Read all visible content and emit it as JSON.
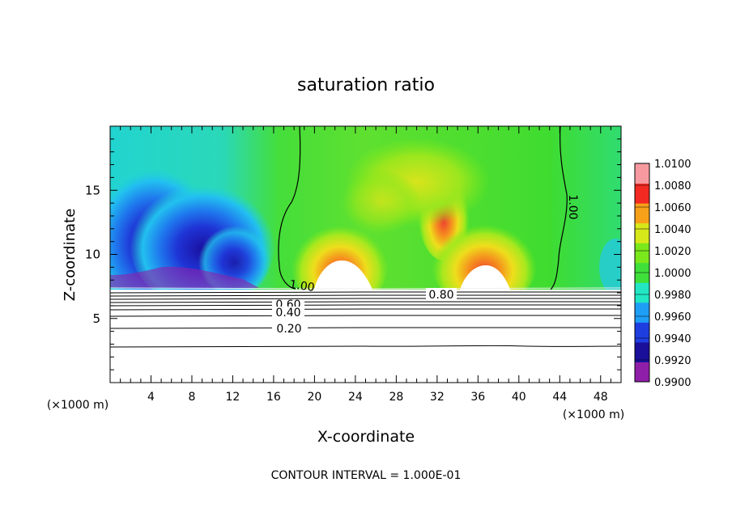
{
  "chart_data": {
    "type": "heatmap",
    "title": "saturation ratio",
    "xlabel": "X-coordinate",
    "ylabel": "Z-coordinate",
    "x_unit_label": "(×1000 m)",
    "x_unit_label_right": "(×1000 m)",
    "footer": "CONTOUR INTERVAL = 1.000E-01",
    "xlim": [
      0,
      50
    ],
    "ylim": [
      0,
      20
    ],
    "x_ticks": [
      4,
      8,
      12,
      16,
      20,
      24,
      28,
      32,
      36,
      40,
      44,
      48
    ],
    "y_ticks": [
      5,
      10,
      15
    ],
    "colorbar": {
      "min": 0.99,
      "max": 1.01,
      "levels": [
        0.99,
        0.992,
        0.994,
        0.996,
        0.998,
        1.0,
        1.002,
        1.004,
        1.006,
        1.008,
        1.01
      ],
      "labels": [
        "0.9900",
        "0.9920",
        "0.9940",
        "0.9960",
        "0.9980",
        "1.0000",
        "1.0020",
        "1.0040",
        "1.0060",
        "1.0080",
        "1.0100"
      ],
      "colors": [
        "#8f1fa8",
        "#1a0f9a",
        "#1f3ee0",
        "#1f9ef5",
        "#22e6c4",
        "#3fe03a",
        "#7be81c",
        "#d7e81a",
        "#f7a11a",
        "#f22a22",
        "#f79aa0"
      ]
    },
    "contour_labels": [
      "1.00",
      "1.00",
      "0.80",
      "0.60",
      "0.40",
      "0.20"
    ]
  }
}
